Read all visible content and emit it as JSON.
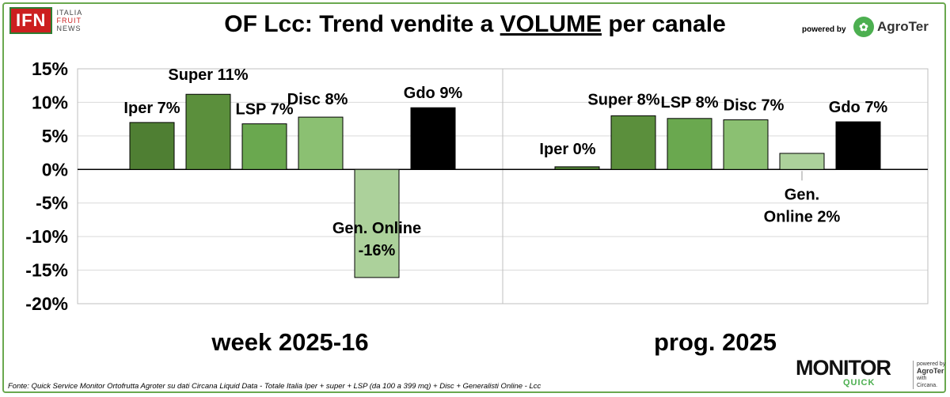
{
  "header": {
    "logo_main": "IFN",
    "logo_lines": [
      "ITALIA",
      "FRUIT",
      "NEWS"
    ],
    "title_before": "OF Lcc: Trend vendite a ",
    "title_emph": "VOLUME",
    "title_after": " per canale",
    "powered_by": "powered by",
    "agroter_name": "AgroTer"
  },
  "chart_data": {
    "type": "bar",
    "y_ticks": [
      "15%",
      "10%",
      "5%",
      "0%",
      "-5%",
      "-10%",
      "-15%",
      "-20%"
    ],
    "ylim": [
      -20,
      15
    ],
    "grid": true,
    "panels": [
      {
        "label": "week 2025-16",
        "bars": [
          {
            "label": "Iper 7%",
            "value": 7.0,
            "color": "#4f7f33"
          },
          {
            "label": "Super 11%",
            "value": 11.2,
            "color": "#5b8f3c"
          },
          {
            "label": "LSP 7%",
            "value": 6.8,
            "color": "#6aa84f"
          },
          {
            "label": "Disc 8%",
            "value": 7.8,
            "color": "#8bc072"
          },
          {
            "label": "Gen. Online -16%",
            "value": -16.1,
            "color": "#acd19b"
          },
          {
            "label": "Gdo 9%",
            "value": 9.2,
            "color": "#000000"
          }
        ]
      },
      {
        "label": "prog. 2025",
        "bars": [
          {
            "label": "Iper 0%",
            "value": 0.4,
            "color": "#4f7f33"
          },
          {
            "label": "Super 8%",
            "value": 8.0,
            "color": "#5b8f3c"
          },
          {
            "label": "LSP 8%",
            "value": 7.6,
            "color": "#6aa84f"
          },
          {
            "label": "Disc 7%",
            "value": 7.4,
            "color": "#8bc072"
          },
          {
            "label": "Gen. Online 2%",
            "value": 2.4,
            "color": "#acd19b"
          },
          {
            "label": "Gdo 7%",
            "value": 7.1,
            "color": "#000000"
          }
        ]
      }
    ]
  },
  "footer": {
    "source": "Fonte: Quick Service Monitor Ortofrutta Agroter su dati Circana Liquid Data - Totale Italia Iper + super + LSP (da 100 a 399 mq) + Disc + Generalisti Online - Lcc",
    "monitor": "MONITOR",
    "quick": "QUICK",
    "side_powered": "powered by",
    "side_agroter": "AgroTer",
    "side_with": "with",
    "side_circana": "Circana."
  }
}
